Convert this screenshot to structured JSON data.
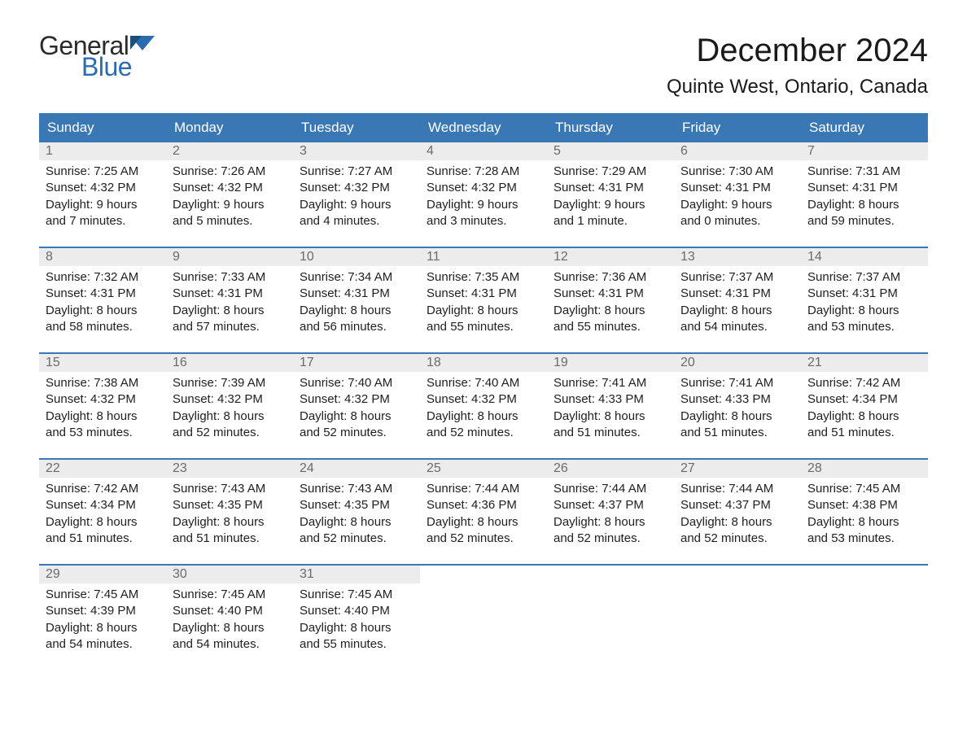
{
  "logo": {
    "general": "General",
    "blue": "Blue",
    "flag_color": "#2b6cb0"
  },
  "title": {
    "month": "December 2024",
    "location": "Quinte West, Ontario, Canada"
  },
  "colors": {
    "header_bg": "#3a78b5",
    "header_text": "#ffffff",
    "daynum_bg": "#ececec",
    "daynum_text": "#6b6b6b",
    "body_text": "#212121",
    "row_border": "#3a78b5",
    "page_bg": "#ffffff"
  },
  "weekdays": [
    "Sunday",
    "Monday",
    "Tuesday",
    "Wednesday",
    "Thursday",
    "Friday",
    "Saturday"
  ],
  "weeks": [
    [
      {
        "n": "1",
        "sunrise": "Sunrise: 7:25 AM",
        "sunset": "Sunset: 4:32 PM",
        "d1": "Daylight: 9 hours",
        "d2": "and 7 minutes."
      },
      {
        "n": "2",
        "sunrise": "Sunrise: 7:26 AM",
        "sunset": "Sunset: 4:32 PM",
        "d1": "Daylight: 9 hours",
        "d2": "and 5 minutes."
      },
      {
        "n": "3",
        "sunrise": "Sunrise: 7:27 AM",
        "sunset": "Sunset: 4:32 PM",
        "d1": "Daylight: 9 hours",
        "d2": "and 4 minutes."
      },
      {
        "n": "4",
        "sunrise": "Sunrise: 7:28 AM",
        "sunset": "Sunset: 4:32 PM",
        "d1": "Daylight: 9 hours",
        "d2": "and 3 minutes."
      },
      {
        "n": "5",
        "sunrise": "Sunrise: 7:29 AM",
        "sunset": "Sunset: 4:31 PM",
        "d1": "Daylight: 9 hours",
        "d2": "and 1 minute."
      },
      {
        "n": "6",
        "sunrise": "Sunrise: 7:30 AM",
        "sunset": "Sunset: 4:31 PM",
        "d1": "Daylight: 9 hours",
        "d2": "and 0 minutes."
      },
      {
        "n": "7",
        "sunrise": "Sunrise: 7:31 AM",
        "sunset": "Sunset: 4:31 PM",
        "d1": "Daylight: 8 hours",
        "d2": "and 59 minutes."
      }
    ],
    [
      {
        "n": "8",
        "sunrise": "Sunrise: 7:32 AM",
        "sunset": "Sunset: 4:31 PM",
        "d1": "Daylight: 8 hours",
        "d2": "and 58 minutes."
      },
      {
        "n": "9",
        "sunrise": "Sunrise: 7:33 AM",
        "sunset": "Sunset: 4:31 PM",
        "d1": "Daylight: 8 hours",
        "d2": "and 57 minutes."
      },
      {
        "n": "10",
        "sunrise": "Sunrise: 7:34 AM",
        "sunset": "Sunset: 4:31 PM",
        "d1": "Daylight: 8 hours",
        "d2": "and 56 minutes."
      },
      {
        "n": "11",
        "sunrise": "Sunrise: 7:35 AM",
        "sunset": "Sunset: 4:31 PM",
        "d1": "Daylight: 8 hours",
        "d2": "and 55 minutes."
      },
      {
        "n": "12",
        "sunrise": "Sunrise: 7:36 AM",
        "sunset": "Sunset: 4:31 PM",
        "d1": "Daylight: 8 hours",
        "d2": "and 55 minutes."
      },
      {
        "n": "13",
        "sunrise": "Sunrise: 7:37 AM",
        "sunset": "Sunset: 4:31 PM",
        "d1": "Daylight: 8 hours",
        "d2": "and 54 minutes."
      },
      {
        "n": "14",
        "sunrise": "Sunrise: 7:37 AM",
        "sunset": "Sunset: 4:31 PM",
        "d1": "Daylight: 8 hours",
        "d2": "and 53 minutes."
      }
    ],
    [
      {
        "n": "15",
        "sunrise": "Sunrise: 7:38 AM",
        "sunset": "Sunset: 4:32 PM",
        "d1": "Daylight: 8 hours",
        "d2": "and 53 minutes."
      },
      {
        "n": "16",
        "sunrise": "Sunrise: 7:39 AM",
        "sunset": "Sunset: 4:32 PM",
        "d1": "Daylight: 8 hours",
        "d2": "and 52 minutes."
      },
      {
        "n": "17",
        "sunrise": "Sunrise: 7:40 AM",
        "sunset": "Sunset: 4:32 PM",
        "d1": "Daylight: 8 hours",
        "d2": "and 52 minutes."
      },
      {
        "n": "18",
        "sunrise": "Sunrise: 7:40 AM",
        "sunset": "Sunset: 4:32 PM",
        "d1": "Daylight: 8 hours",
        "d2": "and 52 minutes."
      },
      {
        "n": "19",
        "sunrise": "Sunrise: 7:41 AM",
        "sunset": "Sunset: 4:33 PM",
        "d1": "Daylight: 8 hours",
        "d2": "and 51 minutes."
      },
      {
        "n": "20",
        "sunrise": "Sunrise: 7:41 AM",
        "sunset": "Sunset: 4:33 PM",
        "d1": "Daylight: 8 hours",
        "d2": "and 51 minutes."
      },
      {
        "n": "21",
        "sunrise": "Sunrise: 7:42 AM",
        "sunset": "Sunset: 4:34 PM",
        "d1": "Daylight: 8 hours",
        "d2": "and 51 minutes."
      }
    ],
    [
      {
        "n": "22",
        "sunrise": "Sunrise: 7:42 AM",
        "sunset": "Sunset: 4:34 PM",
        "d1": "Daylight: 8 hours",
        "d2": "and 51 minutes."
      },
      {
        "n": "23",
        "sunrise": "Sunrise: 7:43 AM",
        "sunset": "Sunset: 4:35 PM",
        "d1": "Daylight: 8 hours",
        "d2": "and 51 minutes."
      },
      {
        "n": "24",
        "sunrise": "Sunrise: 7:43 AM",
        "sunset": "Sunset: 4:35 PM",
        "d1": "Daylight: 8 hours",
        "d2": "and 52 minutes."
      },
      {
        "n": "25",
        "sunrise": "Sunrise: 7:44 AM",
        "sunset": "Sunset: 4:36 PM",
        "d1": "Daylight: 8 hours",
        "d2": "and 52 minutes."
      },
      {
        "n": "26",
        "sunrise": "Sunrise: 7:44 AM",
        "sunset": "Sunset: 4:37 PM",
        "d1": "Daylight: 8 hours",
        "d2": "and 52 minutes."
      },
      {
        "n": "27",
        "sunrise": "Sunrise: 7:44 AM",
        "sunset": "Sunset: 4:37 PM",
        "d1": "Daylight: 8 hours",
        "d2": "and 52 minutes."
      },
      {
        "n": "28",
        "sunrise": "Sunrise: 7:45 AM",
        "sunset": "Sunset: 4:38 PM",
        "d1": "Daylight: 8 hours",
        "d2": "and 53 minutes."
      }
    ],
    [
      {
        "n": "29",
        "sunrise": "Sunrise: 7:45 AM",
        "sunset": "Sunset: 4:39 PM",
        "d1": "Daylight: 8 hours",
        "d2": "and 54 minutes."
      },
      {
        "n": "30",
        "sunrise": "Sunrise: 7:45 AM",
        "sunset": "Sunset: 4:40 PM",
        "d1": "Daylight: 8 hours",
        "d2": "and 54 minutes."
      },
      {
        "n": "31",
        "sunrise": "Sunrise: 7:45 AM",
        "sunset": "Sunset: 4:40 PM",
        "d1": "Daylight: 8 hours",
        "d2": "and 55 minutes."
      },
      null,
      null,
      null,
      null
    ]
  ]
}
